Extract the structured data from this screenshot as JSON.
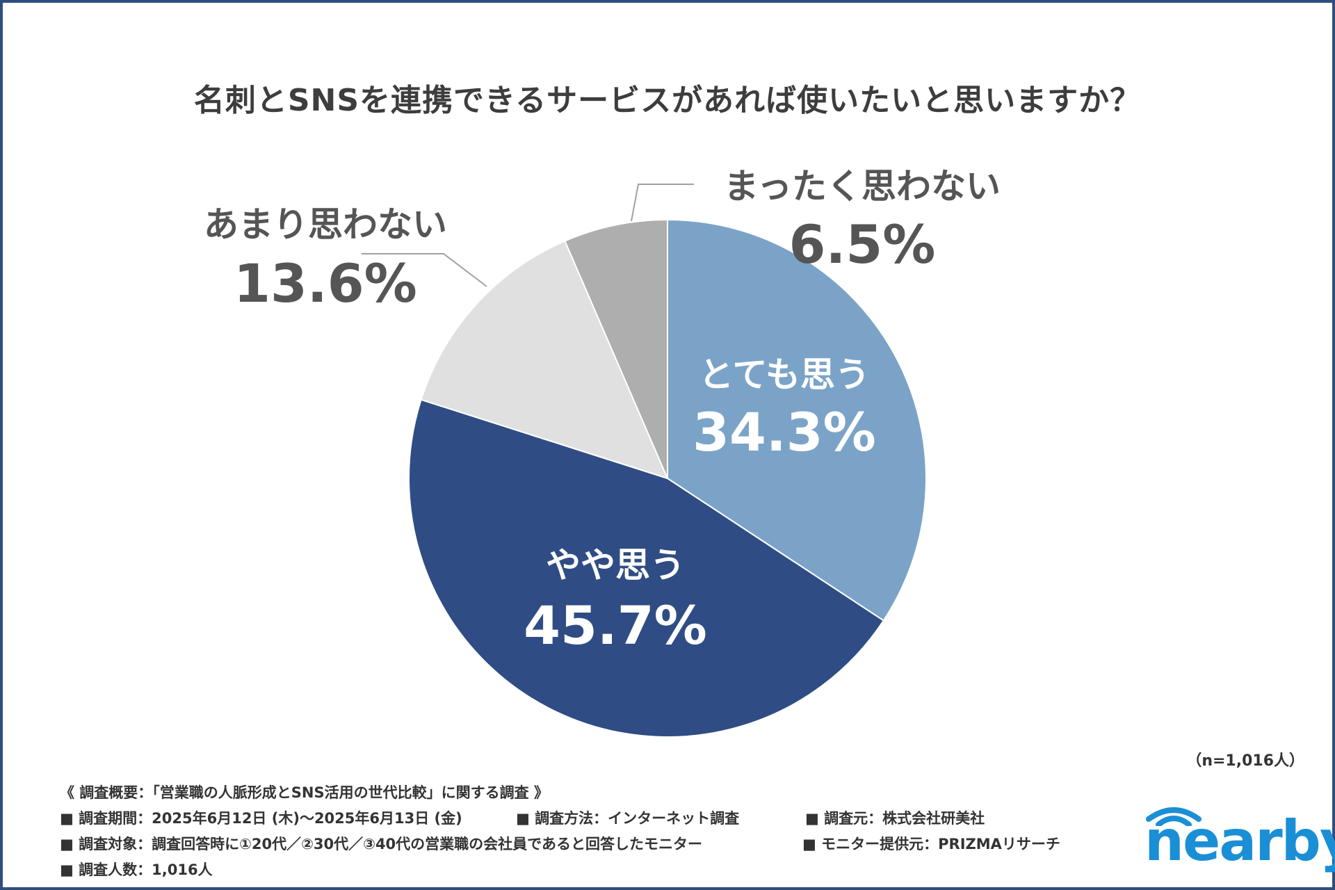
{
  "title": "名刺とSNSを連携できるサービスがあれば使いたいと思いますか？",
  "chart_data": {
    "type": "pie",
    "title": "名刺とSNSを連携できるサービスがあれば使いたいと思いますか？",
    "slices": [
      {
        "label": "とても思う",
        "value": 34.3,
        "display": "34.3%",
        "color": "#7ba3c8",
        "label_color": "#ffffff"
      },
      {
        "label": "やや思う",
        "value": 45.7,
        "display": "45.7%",
        "color": "#2f4d84",
        "label_color": "#ffffff"
      },
      {
        "label": "あまり思わない",
        "value": 13.6,
        "display": "13.6%",
        "color": "#e0e0e0",
        "label_color": "#555555"
      },
      {
        "label": "まったく思わない",
        "value": 6.5,
        "display": "6.5%",
        "color": "#aeaeae",
        "label_color": "#555555"
      }
    ],
    "start_angle": "12 o'clock",
    "direction": "clockwise"
  },
  "sample_size": "（n=1,016人）",
  "notes": {
    "summary": "《 調査概要：「営業職の人脈形成とSNS活用の世代比較」に関する調査 》",
    "period": "■ 調査期間：2025年6月12日 (木)～2025年6月13日 (金)",
    "method": "■ 調査方法：インターネット調査",
    "source": "■ 調査元：株式会社研美社",
    "target": "■ 調査対象：調査回答時に①20代／②30代／③40代の営業職の会社員であると回答したモニター",
    "provider": "■ モニター提供元：PRIZMAリサーチ",
    "count": "■ 調査人数：1,016人"
  },
  "logo": {
    "text": "nearby",
    "color": "#1a8fd6"
  },
  "colors": {
    "border": "#2f4d7f",
    "title": "#3d3d3d"
  }
}
